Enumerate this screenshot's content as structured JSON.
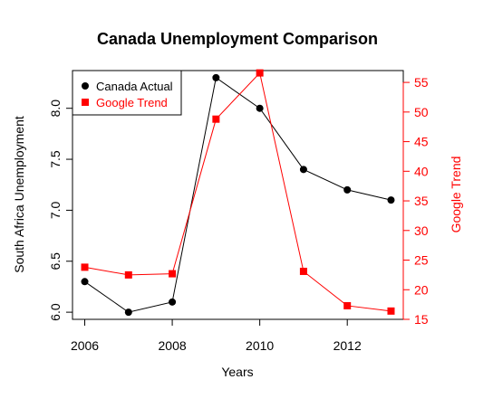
{
  "chart_data": {
    "type": "line",
    "title": "Canada Unemployment Comparison",
    "xlabel": "Years",
    "ylabel_left": "South Africa Unemployment",
    "ylabel_right": "Google Trend",
    "x": [
      2006,
      2007,
      2008,
      2009,
      2010,
      2011,
      2012,
      2013
    ],
    "x_ticks": [
      "2006",
      "2008",
      "2010",
      "2012"
    ],
    "left_ticks": [
      "6.0",
      "6.5",
      "7.0",
      "7.5",
      "8.0"
    ],
    "right_ticks": [
      "15",
      "20",
      "25",
      "30",
      "35",
      "40",
      "45",
      "50",
      "55"
    ],
    "xlim": [
      2005.72,
      2013.28
    ],
    "ylim_left": [
      5.93,
      8.37
    ],
    "ylim_right": [
      15,
      57
    ],
    "legend_placement": "top-left",
    "grid": false,
    "series": [
      {
        "name": "Canada Actual",
        "axis": "left",
        "color": "#000000",
        "marker": "circle",
        "values": [
          6.3,
          6.0,
          6.1,
          8.3,
          8.0,
          7.4,
          7.2,
          7.1
        ]
      },
      {
        "name": "Google Trend",
        "axis": "right",
        "color": "#ff0000",
        "marker": "square",
        "values": [
          23.8,
          22.5,
          22.7,
          48.8,
          56.6,
          23.1,
          17.3,
          16.4
        ]
      }
    ]
  }
}
